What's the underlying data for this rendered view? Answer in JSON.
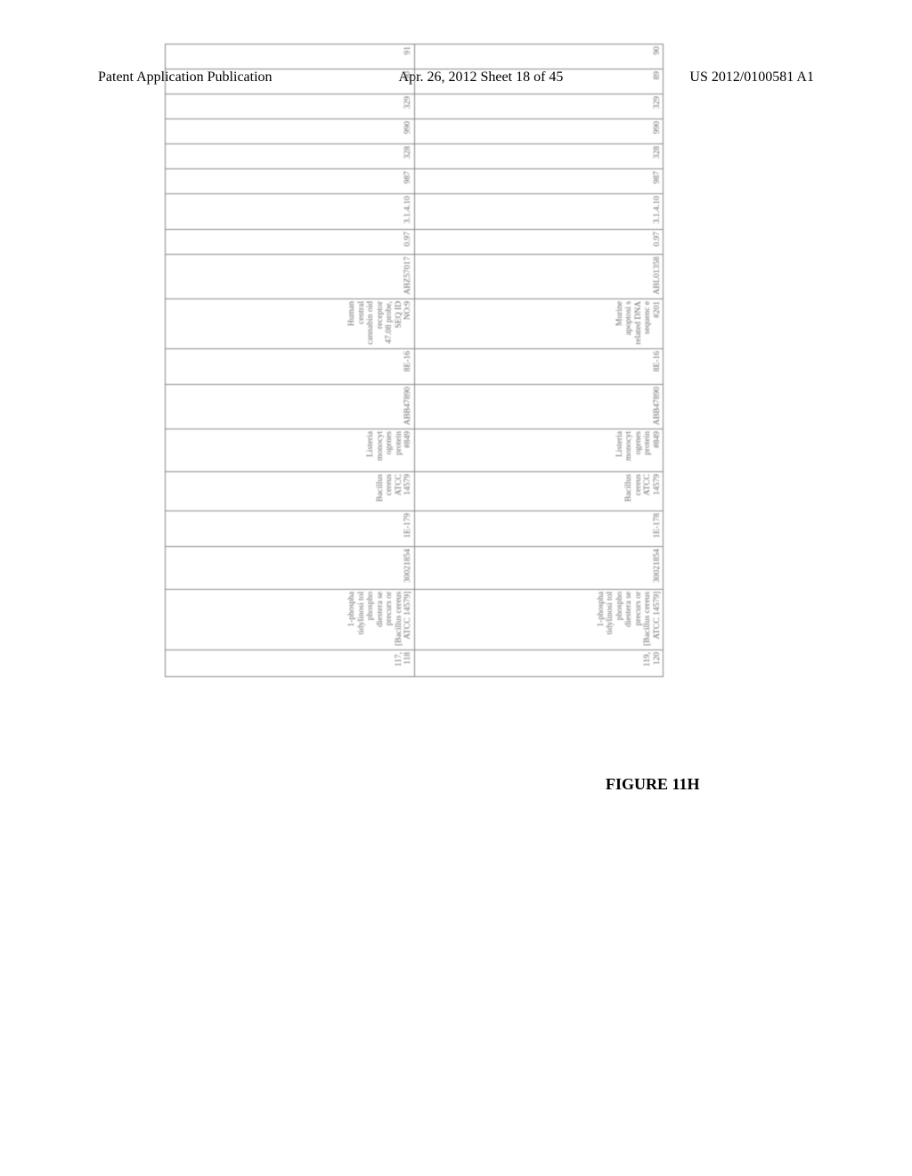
{
  "header": {
    "left": "Patent Application Publication",
    "center": "Apr. 26, 2012  Sheet 18 of 45",
    "right": "US 2012/0100581 A1"
  },
  "figure_label": "FIGURE 11H",
  "table": {
    "type": "table",
    "border_color": "#888888",
    "text_color": "#666666",
    "background_color": "#ffffff",
    "font_size": 9.5,
    "rotation_deg": -90,
    "rows": [
      {
        "ids": "117, 118",
        "desc": "1-phospha tidylinosi tol phospho diestera se precurs or [Bacillus cereus ATCC 14579]",
        "val_a": "30021854",
        "val_b": "1E-179",
        "org": "Bacillus cereus ATCC 14579",
        "protein": "Listeria monocyt ogenes protein #849",
        "accession1": "ABB47890",
        "val_c": "8E-16",
        "text_col": "Human central cannabin oid receptor 47.08 probe, SEQ ID NO:9",
        "accession2": "ABZ57017",
        "val_d": "0.97",
        "ec": "3.1.4.10",
        "n1": "987",
        "n2": "328",
        "n3": "990",
        "n4": "329",
        "n5": "90",
        "n6": "91"
      },
      {
        "ids": "119, 120",
        "desc": "1-phospha tidylinosi tol phospho diestera se precurs or [Bacillus cereus ATCC 14579]",
        "val_a": "30021854",
        "val_b": "1E-178",
        "org": "Bacillus cereus ATCC 14579",
        "protein": "Listeria monocyt ogenes protein #849",
        "accession1": "ABB47890",
        "val_c": "8E-16",
        "text_col": "Murine apoptosi s related DNA sequenc e #201",
        "accession2": "ABL01358",
        "val_d": "0.97",
        "ec": "3.1.4.10",
        "n1": "987",
        "n2": "328",
        "n3": "990",
        "n4": "329",
        "n5": "89",
        "n6": "90"
      }
    ]
  }
}
